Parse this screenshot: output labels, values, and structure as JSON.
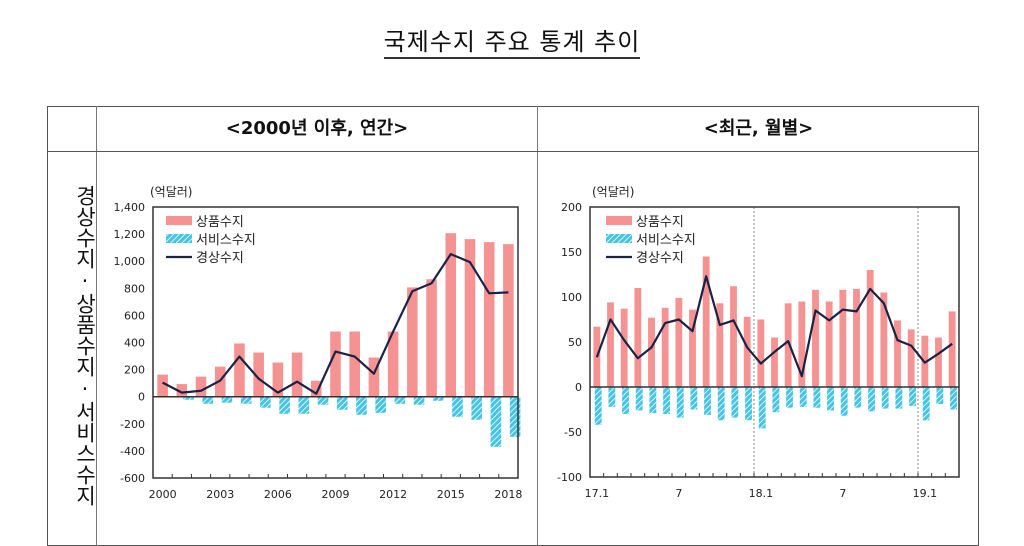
{
  "page_title": "국제수지 주요 통계 추이",
  "row_label": "경상수지·상품수지·서비스수지",
  "columns": [
    "<2000년 이후, 연간>",
    "<최근, 월별>"
  ],
  "colors": {
    "goods": "#f59393",
    "services": "#46c4e6",
    "current": "#1b2246",
    "axis": "#333333"
  },
  "chart_data": [
    {
      "type": "bar",
      "title": "<2000년 이후, 연간>",
      "unit_label": "(억달러)",
      "xlabel": "",
      "ylabel": "억달러",
      "ylim": [
        -600,
        1400
      ],
      "yticks": [
        1400,
        1200,
        1000,
        800,
        600,
        400,
        200,
        0,
        -200,
        -400,
        -600
      ],
      "ytick_labels": [
        "1,400",
        "1,200",
        "1,000",
        "800",
        "600",
        "400",
        "200",
        "0",
        "-200",
        "-400",
        "-600"
      ],
      "categories": [
        "2000",
        "2001",
        "2002",
        "2003",
        "2004",
        "2005",
        "2006",
        "2007",
        "2008",
        "2009",
        "2010",
        "2011",
        "2012",
        "2013",
        "2014",
        "2015",
        "2016",
        "2017",
        "2018"
      ],
      "xtick_labels": [
        "2000",
        "2003",
        "2006",
        "2009",
        "2012",
        "2015",
        "2018"
      ],
      "legend": [
        "상품수지",
        "서비스수지",
        "경상수지"
      ],
      "legend_position": "top-left",
      "series": [
        {
          "name": "상품수지",
          "kind": "bar",
          "values": [
            163,
            93,
            148,
            222,
            393,
            326,
            252,
            326,
            118,
            481,
            481,
            289,
            481,
            807,
            867,
            1207,
            1163,
            1141,
            1126
          ]
        },
        {
          "name": "서비스수지",
          "kind": "bar-hatched",
          "values": [
            -5,
            -22,
            -52,
            -44,
            -52,
            -81,
            -126,
            -126,
            -59,
            -96,
            -133,
            -119,
            -52,
            -59,
            -30,
            -148,
            -170,
            -370,
            -296
          ]
        },
        {
          "name": "경상수지",
          "kind": "line",
          "values": [
            104,
            30,
            44,
            119,
            296,
            133,
            30,
            111,
            22,
            333,
            296,
            170,
            481,
            778,
            837,
            1052,
            993,
            763,
            770
          ]
        }
      ]
    },
    {
      "type": "bar",
      "title": "<최근, 월별>",
      "unit_label": "(억달러)",
      "xlabel": "",
      "ylabel": "억달러",
      "ylim": [
        -100,
        200
      ],
      "yticks": [
        200,
        150,
        100,
        50,
        0,
        -50,
        -100
      ],
      "ytick_labels": [
        "200",
        "150",
        "100",
        "50",
        "0",
        "-50",
        "-100"
      ],
      "categories": [
        "17.1",
        "17.2",
        "17.3",
        "17.4",
        "17.5",
        "17.6",
        "17.7",
        "17.8",
        "17.9",
        "17.10",
        "17.11",
        "17.12",
        "18.1",
        "18.2",
        "18.3",
        "18.4",
        "18.5",
        "18.6",
        "18.7",
        "18.8",
        "18.9",
        "18.10",
        "18.11",
        "18.12",
        "19.1",
        "19.2",
        "19.3"
      ],
      "xtick_labels": [
        "17.1",
        "7",
        "18.1",
        "7",
        "19.1"
      ],
      "year_dividers": [
        "18.1",
        "19.1"
      ],
      "legend": [
        "상품수지",
        "서비스수지",
        "경상수지"
      ],
      "legend_position": "top-left",
      "series": [
        {
          "name": "상품수지",
          "kind": "bar",
          "values": [
            67,
            94,
            87,
            110,
            77,
            88,
            99,
            86,
            145,
            93,
            112,
            78,
            75,
            55,
            93,
            95,
            108,
            95,
            108,
            109,
            130,
            105,
            74,
            64,
            57,
            55,
            84
          ]
        },
        {
          "name": "서비스수지",
          "kind": "bar-hatched",
          "values": [
            -42,
            -22,
            -30,
            -26,
            -29,
            -30,
            -34,
            -25,
            -31,
            -37,
            -34,
            -37,
            -46,
            -28,
            -23,
            -22,
            -23,
            -26,
            -32,
            -23,
            -27,
            -24,
            -24,
            -21,
            -37,
            -19,
            -25
          ]
        },
        {
          "name": "경상수지",
          "kind": "line",
          "values": [
            33,
            75,
            52,
            32,
            44,
            71,
            75,
            62,
            123,
            69,
            74,
            44,
            26,
            39,
            51,
            12,
            85,
            74,
            86,
            84,
            109,
            93,
            52,
            46,
            27,
            37,
            48
          ]
        }
      ]
    }
  ]
}
